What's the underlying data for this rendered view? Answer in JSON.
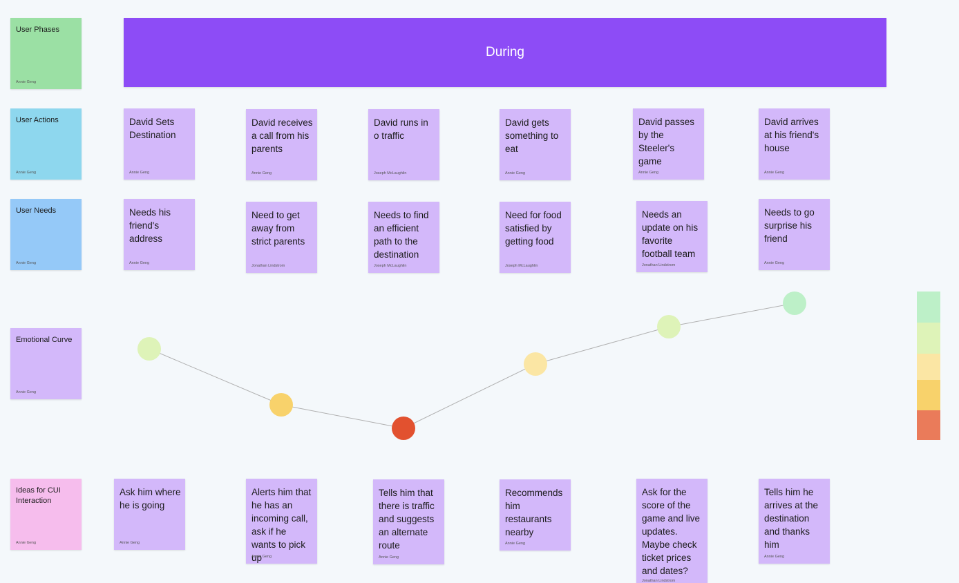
{
  "phase": {
    "title": "During"
  },
  "labels": [
    {
      "text": "User Phases",
      "author": "Annie Geng",
      "color": "#9be0a4"
    },
    {
      "text": "User Actions",
      "author": "Annie Geng",
      "color": "#8ed7ee"
    },
    {
      "text": "User Needs",
      "author": "Annie Geng",
      "color": "#95c9f8"
    },
    {
      "text": "Emotional Curve",
      "author": "Annie Geng",
      "color": "#d3b8fa"
    },
    {
      "text": "Ideas for CUI Interaction",
      "author": "Annie Geng",
      "color": "#f6bded"
    }
  ],
  "actions": [
    {
      "text": "David Sets Destination",
      "author": "Annie Geng"
    },
    {
      "text": "David receives a call from his parents",
      "author": "Annie Geng"
    },
    {
      "text": "David runs in o traffic",
      "author": "Joseph McLaughlin"
    },
    {
      "text": "David gets something to eat",
      "author": "Annie Geng"
    },
    {
      "text": "David passes by the Steeler's game",
      "author": "Annie Geng"
    },
    {
      "text": "David arrives at his friend's house",
      "author": "Annie Geng"
    }
  ],
  "needs": [
    {
      "text": "Needs his friend's address",
      "author": "Annie Geng"
    },
    {
      "text": "Need to get away from strict parents",
      "author": "Jonathan Lindstrom"
    },
    {
      "text": "Needs to find an efficient path to the destination",
      "author": "Joseph McLaughlin"
    },
    {
      "text": "Need for food satisfied by getting food",
      "author": "Joseph McLaughlin"
    },
    {
      "text": "Needs an update on his favorite football team",
      "author": "Jonathan Lindstrom"
    },
    {
      "text": "Needs to go surprise his friend",
      "author": "Annie Geng"
    }
  ],
  "ideas": [
    {
      "text": "Ask him where he is going",
      "author": "Annie Geng"
    },
    {
      "text": "Alerts him that he has an incoming call, ask if he wants to pick up",
      "author": "Annie Geng"
    },
    {
      "text": "Tells him that there is traffic and suggests an alternate route",
      "author": "Annie Geng"
    },
    {
      "text": "Recommends him restaurants nearby",
      "author": "Annie Geng"
    },
    {
      "text": "Ask for the score of the game and live updates. Maybe check ticket prices and dates?",
      "author": "Jonathan Lindstrom"
    },
    {
      "text": "Tells him he arrives at the destination and thanks him",
      "author": "Annie Geng"
    }
  ],
  "emotion_scale": [
    "#bdf0c8",
    "#def3b8",
    "#fbe6a4",
    "#f8d26b",
    "#ea7b5a"
  ],
  "emotional_curve": [
    {
      "step": "David Sets Destination",
      "level": 3,
      "color": "#def3b8"
    },
    {
      "step": "David receives a call from his parents",
      "level": 1,
      "color": "#f8d26b"
    },
    {
      "step": "David runs in o traffic",
      "level": 0,
      "color": "#e2512f"
    },
    {
      "step": "David gets something to eat",
      "level": 2,
      "color": "#fbe6a4"
    },
    {
      "step": "David passes by the Steeler's game",
      "level": 3,
      "color": "#def3b8"
    },
    {
      "step": "David arrives at his friend's house",
      "level": 4,
      "color": "#bdf0c8"
    }
  ]
}
